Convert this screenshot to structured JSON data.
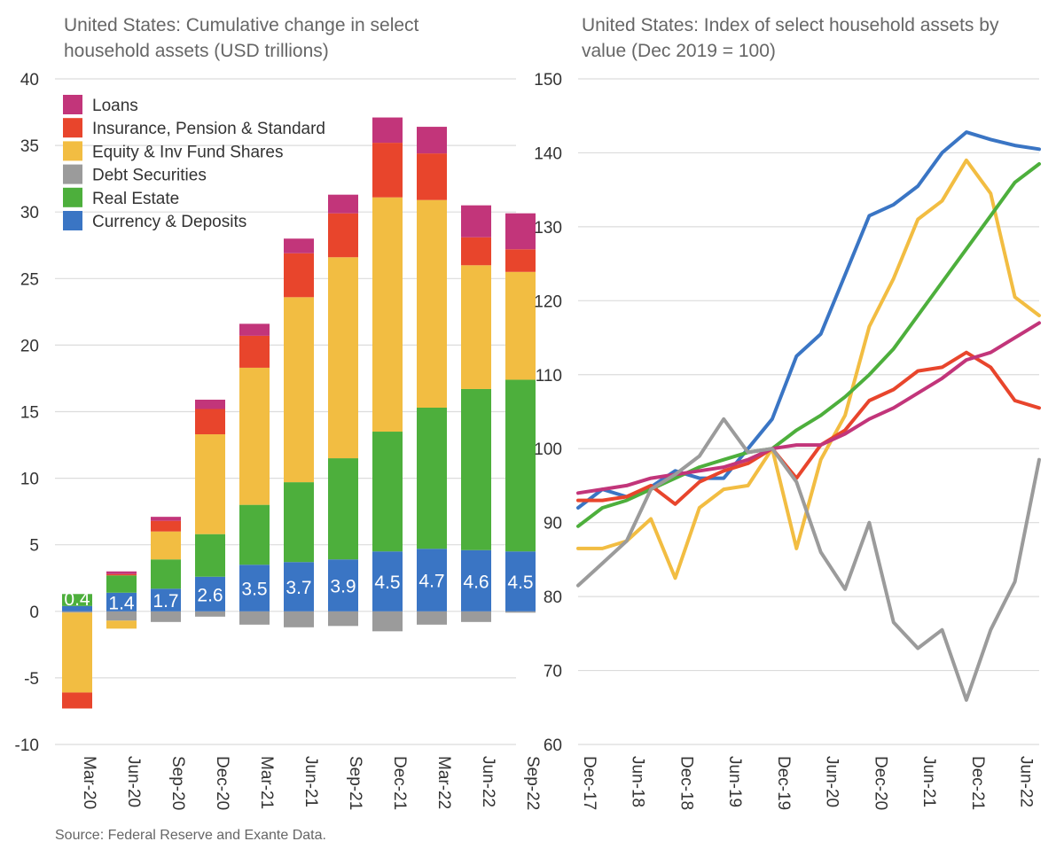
{
  "chart_data": [
    {
      "type": "bar",
      "stacked": true,
      "title": "United States: Cumulative change in select household assets (USD trillions)",
      "title_lines": [
        "United States: Cumulative change in select",
        "household assets (USD trillions)"
      ],
      "ylim": [
        -10,
        40
      ],
      "yticks": [
        -10,
        -5,
        0,
        5,
        10,
        15,
        20,
        25,
        30,
        35,
        40
      ],
      "grid": true,
      "legend_position": "top-left",
      "categories": [
        "Mar-20",
        "Jun-20",
        "Sep-20",
        "Dec-20",
        "Mar-21",
        "Jun-21",
        "Sep-21",
        "Dec-21",
        "Mar-22",
        "Jun-22",
        "Sep-22"
      ],
      "series": [
        {
          "name": "Currency & Deposits",
          "color": "#3a75c4",
          "values": [
            0.4,
            1.4,
            1.7,
            2.6,
            3.5,
            3.7,
            3.9,
            4.5,
            4.7,
            4.6,
            4.5
          ]
        },
        {
          "name": "Real Estate",
          "color": "#4daf3c",
          "values": [
            0.9,
            1.3,
            2.2,
            3.2,
            4.5,
            6.0,
            7.6,
            9.0,
            10.6,
            12.1,
            12.9
          ]
        },
        {
          "name": "Debt Securities",
          "color": "#9b9b9b",
          "values": [
            -0.1,
            -0.7,
            -0.8,
            -0.4,
            -1.0,
            -1.2,
            -1.1,
            -1.5,
            -1.0,
            -0.8,
            -0.1
          ]
        },
        {
          "name": "Equity & Inv Fund Shares",
          "color": "#f2bd42",
          "values": [
            -6.0,
            -0.6,
            2.1,
            7.5,
            10.3,
            13.9,
            15.1,
            17.6,
            15.6,
            9.3,
            8.1
          ]
        },
        {
          "name": "Insurance, Pension & Standard",
          "color": "#e8452c",
          "values": [
            -1.2,
            0.1,
            0.8,
            1.9,
            2.4,
            3.3,
            3.3,
            4.1,
            3.5,
            2.1,
            1.7
          ]
        },
        {
          "name": "Loans",
          "color": "#c2357a",
          "values": [
            0.0,
            0.2,
            0.3,
            0.7,
            0.9,
            1.1,
            1.4,
            1.9,
            2.0,
            2.4,
            2.7
          ]
        }
      ],
      "data_labels": [
        "0.4",
        "1.4",
        "1.7",
        "2.6",
        "3.5",
        "3.7",
        "3.9",
        "4.5",
        "4.7",
        "4.6",
        "4.5"
      ],
      "legend_order": [
        "Loans",
        "Insurance, Pension & Standard",
        "Equity & Inv Fund Shares",
        "Debt Securities",
        "Real Estate",
        "Currency & Deposits"
      ]
    },
    {
      "type": "line",
      "title": "United States: Index of select household assets by value (Dec 2019 = 100)",
      "title_lines": [
        "United States: Index of select household assets by",
        "value (Dec 2019 = 100)"
      ],
      "ylim": [
        60,
        150
      ],
      "yticks": [
        60,
        70,
        80,
        90,
        100,
        110,
        120,
        130,
        140,
        150
      ],
      "grid": true,
      "x": [
        "Dec-17",
        "Mar-18",
        "Jun-18",
        "Sep-18",
        "Dec-18",
        "Mar-19",
        "Jun-19",
        "Sep-19",
        "Dec-19",
        "Mar-20",
        "Jun-20",
        "Sep-20",
        "Dec-20",
        "Mar-21",
        "Jun-21",
        "Sep-21",
        "Dec-21",
        "Mar-22",
        "Jun-22",
        "Sep-22"
      ],
      "xtick_labels": [
        "Dec-17",
        "Jun-18",
        "Dec-18",
        "Jun-19",
        "Dec-19",
        "Jun-20",
        "Dec-20",
        "Jun-21",
        "Dec-21",
        "Jun-22"
      ],
      "series": [
        {
          "color": "#3a75c4",
          "values": [
            92.0,
            94.5,
            93.5,
            94.8,
            97.0,
            96.0,
            96.0,
            100.0,
            104.0,
            112.5,
            115.5,
            123.5,
            131.5,
            133.0,
            135.5,
            140.0,
            142.8,
            141.8,
            141.0,
            140.5
          ]
        },
        {
          "color": "#f2bd42",
          "values": [
            86.5,
            86.5,
            87.5,
            90.5,
            82.5,
            92.0,
            94.5,
            95.0,
            100.0,
            86.5,
            98.5,
            104.5,
            116.5,
            123.0,
            131.0,
            133.5,
            139.0,
            134.5,
            120.5,
            118.0
          ]
        },
        {
          "color": "#4daf3c",
          "values": [
            89.5,
            92.0,
            93.0,
            94.5,
            96.0,
            97.5,
            98.5,
            99.5,
            100.0,
            102.5,
            104.5,
            107.0,
            110.0,
            113.5,
            118.0,
            122.5,
            127.0,
            131.5,
            136.0,
            138.5
          ]
        },
        {
          "color": "#e8452c",
          "values": [
            93.0,
            93.0,
            93.5,
            95.0,
            92.5,
            95.5,
            97.0,
            98.0,
            100.0,
            96.0,
            100.5,
            102.5,
            106.5,
            108.0,
            110.5,
            111.0,
            113.0,
            111.0,
            106.5,
            105.5
          ]
        },
        {
          "color": "#c2357a",
          "values": [
            94.0,
            94.5,
            95.0,
            96.0,
            96.5,
            97.0,
            97.5,
            98.5,
            100.0,
            100.5,
            100.5,
            102.0,
            104.0,
            105.5,
            107.5,
            109.5,
            112.0,
            113.0,
            115.0,
            117.0
          ]
        },
        {
          "color": "#9b9b9b",
          "values": [
            81.5,
            84.5,
            87.5,
            94.5,
            96.5,
            99.0,
            104.0,
            99.5,
            100.0,
            95.5,
            86.0,
            81.0,
            90.0,
            76.5,
            73.0,
            75.5,
            66.0,
            75.5,
            82.0,
            98.5
          ]
        }
      ]
    }
  ],
  "source": "Source: Federal Reserve and Exante Data."
}
